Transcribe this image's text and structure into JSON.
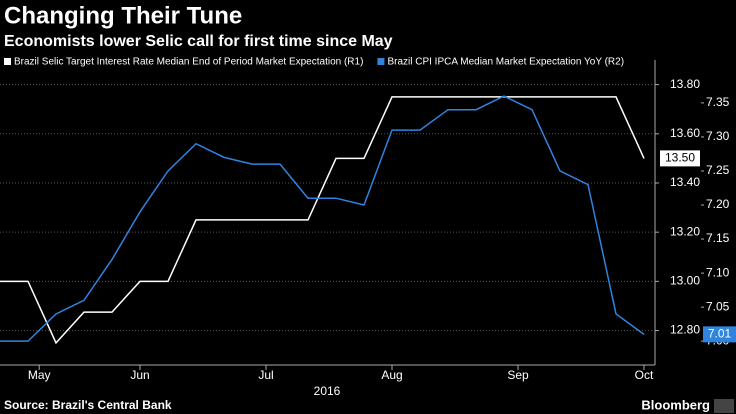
{
  "chart_data": {
    "type": "line",
    "title": "Changing Their Tune",
    "subtitle": "Economists lower Selic call for first time since May",
    "source": "Source: Brazil's Central Bank",
    "brand": "Bloomberg",
    "xlabel": "2016",
    "categories": [
      null,
      null,
      null,
      null,
      null,
      null,
      null,
      null,
      null,
      null,
      null,
      null,
      null,
      null,
      null,
      null,
      null,
      null,
      null,
      null,
      null,
      null,
      null,
      null
    ],
    "xticks": [
      {
        "value": 1.4,
        "label": "May"
      },
      {
        "value": 5,
        "label": "Jun"
      },
      {
        "value": 9.5,
        "label": "Jul"
      },
      {
        "value": 14,
        "label": "Aug"
      },
      {
        "value": 18.5,
        "label": "Sep"
      },
      {
        "value": 23,
        "label": "Oct"
      }
    ],
    "series": [
      {
        "name": "Brazil Selic Target Interest Rate Median End of Period Market Expectation  (R1)",
        "color": "#ffffff",
        "axis": "y",
        "values": [
          13.0,
          13.0,
          12.75,
          12.875,
          12.875,
          13.0,
          13.0,
          13.25,
          13.25,
          13.25,
          13.25,
          13.25,
          13.5,
          13.5,
          13.75,
          13.75,
          13.75,
          13.75,
          13.75,
          13.75,
          13.75,
          13.75,
          13.75,
          13.5
        ],
        "value_labels": [
          null,
          null,
          null,
          null,
          null,
          null,
          null,
          null,
          null,
          null,
          null,
          null,
          null,
          null,
          null,
          null,
          null,
          null,
          null,
          null,
          null,
          null,
          null,
          "13.50"
        ]
      },
      {
        "name": "Brazil CPI IPCA Median Market Expectation YoY  (R2)",
        "color": "#2f84e0",
        "axis": "y2",
        "values": [
          7.0,
          7.0,
          7.04,
          7.06,
          7.12,
          7.19,
          7.25,
          7.29,
          7.27,
          7.26,
          7.26,
          7.21,
          7.21,
          7.2,
          7.31,
          7.31,
          7.34,
          7.34,
          7.36,
          7.34,
          7.25,
          7.23,
          7.04,
          7.01
        ],
        "value_labels": [
          null,
          null,
          null,
          null,
          null,
          null,
          null,
          null,
          null,
          null,
          null,
          null,
          null,
          null,
          null,
          null,
          null,
          null,
          null,
          null,
          null,
          null,
          null,
          "7.01"
        ]
      }
    ],
    "ylim": [
      12.66,
      13.9
    ],
    "yticks": [
      {
        "value": 12.8,
        "label": "12.80"
      },
      {
        "value": 13.0,
        "label": "13.00"
      },
      {
        "value": 13.2,
        "label": "13.20"
      },
      {
        "value": 13.4,
        "label": "13.40"
      },
      {
        "value": 13.6,
        "label": "13.60"
      },
      {
        "value": 13.8,
        "label": "13.80"
      }
    ],
    "y2lim": [
      6.965,
      7.413
    ],
    "y2ticks": [
      {
        "value": 7.0,
        "label": "7.00"
      },
      7.05,
      {
        "value": 7.1,
        "label": "7.10"
      },
      7.15,
      {
        "value": 7.2,
        "label": "7.20"
      },
      7.25,
      {
        "value": 7.3,
        "label": "7.30"
      },
      7.35
    ],
    "grid": true
  }
}
